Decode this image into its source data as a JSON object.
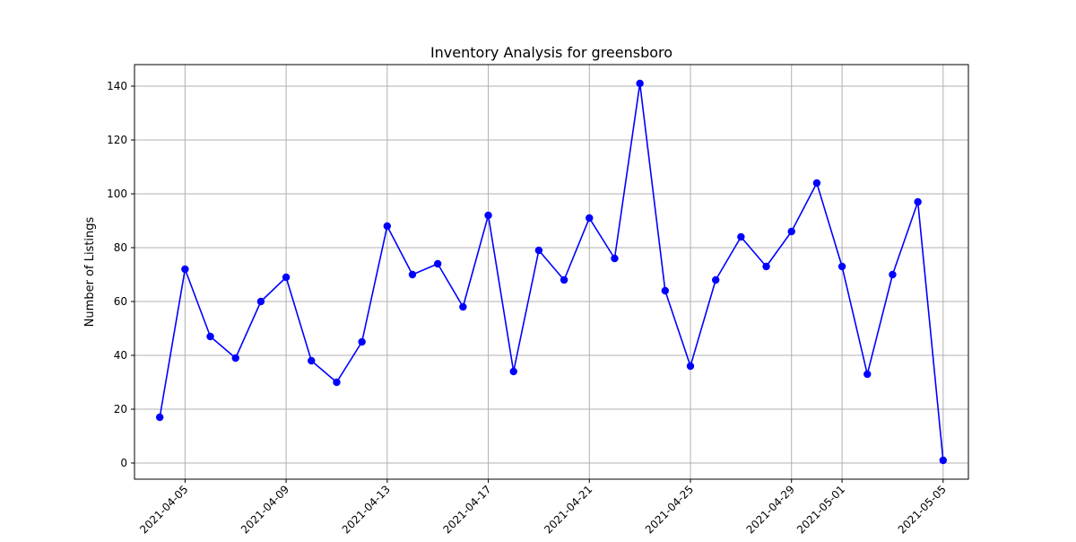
{
  "chart_data": {
    "type": "line",
    "title": "Inventory Analysis for greensboro",
    "xlabel": "",
    "ylabel": "Number of Listings",
    "x": [
      "2021-04-04",
      "2021-04-05",
      "2021-04-06",
      "2021-04-07",
      "2021-04-08",
      "2021-04-09",
      "2021-04-10",
      "2021-04-11",
      "2021-04-12",
      "2021-04-13",
      "2021-04-14",
      "2021-04-15",
      "2021-04-16",
      "2021-04-17",
      "2021-04-18",
      "2021-04-19",
      "2021-04-20",
      "2021-04-21",
      "2021-04-22",
      "2021-04-23",
      "2021-04-24",
      "2021-04-25",
      "2021-04-26",
      "2021-04-27",
      "2021-04-28",
      "2021-04-29",
      "2021-04-30",
      "2021-05-01",
      "2021-05-02",
      "2021-05-03",
      "2021-05-04",
      "2021-05-05"
    ],
    "series": [
      {
        "values": [
          17,
          72,
          47,
          39,
          60,
          69,
          38,
          30,
          45,
          88,
          70,
          74,
          58,
          92,
          34,
          79,
          68,
          91,
          76,
          141,
          64,
          36,
          68,
          84,
          73,
          86,
          104,
          73,
          33,
          70,
          97,
          1
        ]
      }
    ],
    "xticks": [
      "2021-04-05",
      "2021-04-09",
      "2021-04-13",
      "2021-04-17",
      "2021-04-21",
      "2021-04-25",
      "2021-04-29",
      "2021-05-01",
      "2021-05-05"
    ],
    "yticks": [
      0,
      20,
      40,
      60,
      80,
      100,
      120,
      140
    ],
    "xlim": [
      "2021-04-03",
      "2021-05-06"
    ],
    "ylim": [
      -6,
      148
    ],
    "grid": true,
    "legend": "none",
    "colors": {
      "line": "#0000ff",
      "marker": "#0000ff",
      "grid": "#b0b0b0",
      "background": "#ffffff"
    }
  }
}
